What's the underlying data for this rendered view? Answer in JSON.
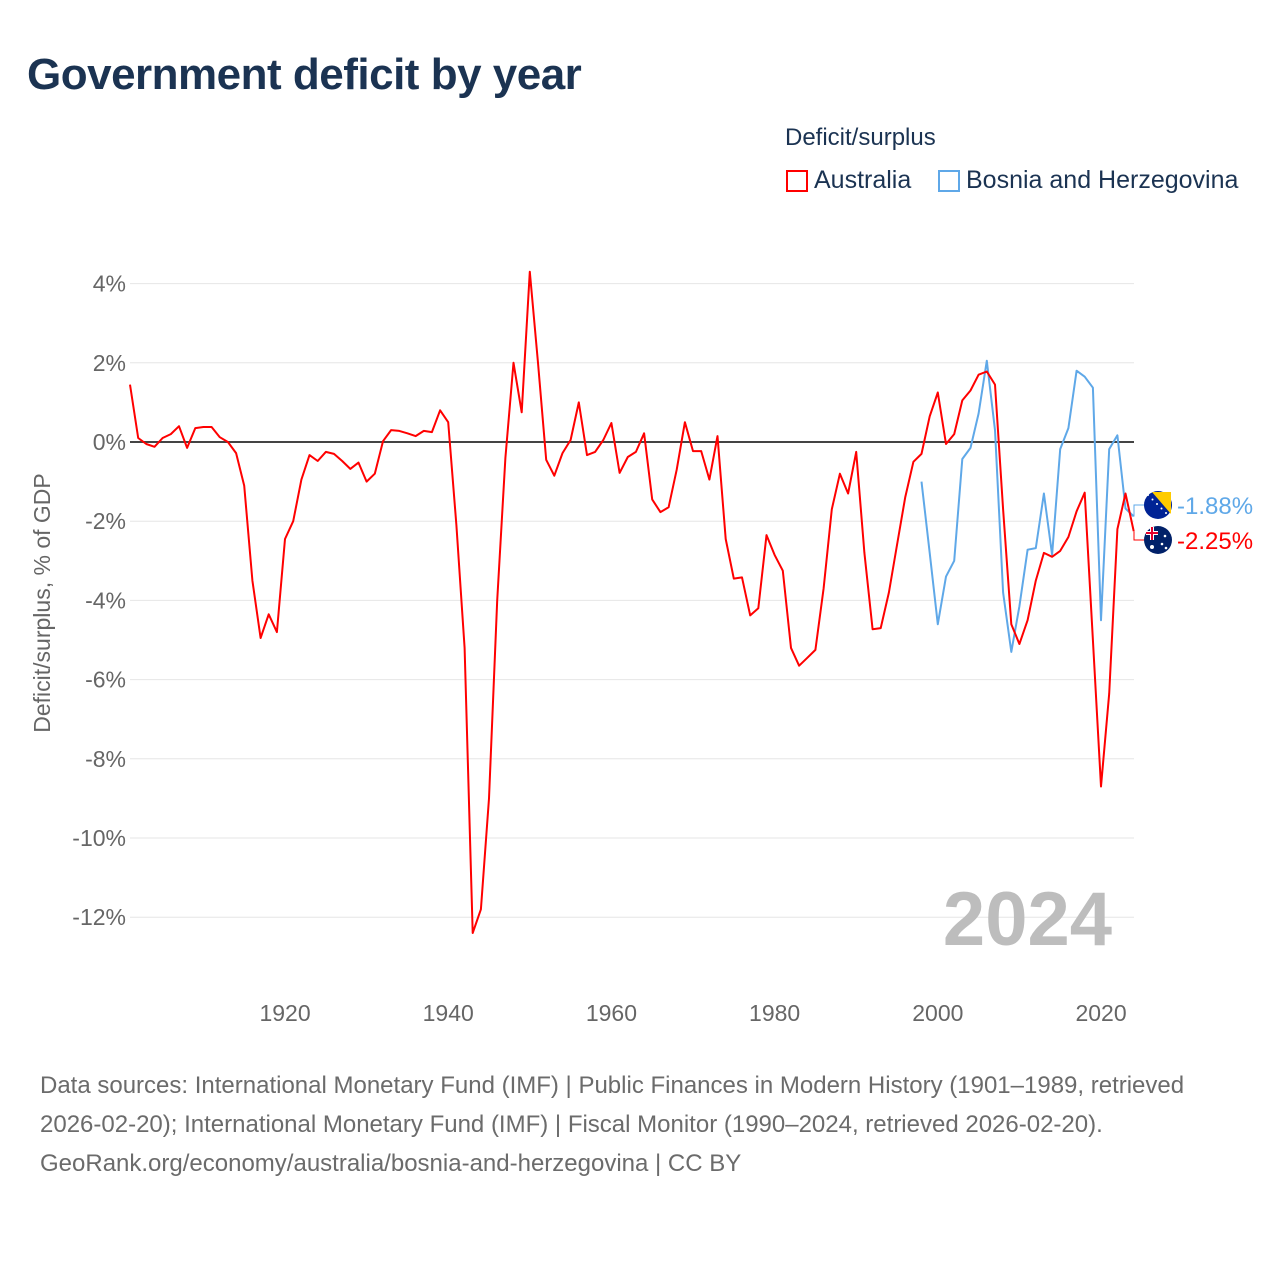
{
  "title": "Government deficit by year",
  "legend": {
    "title": "Deficit/surplus",
    "items": [
      {
        "label": "Australia",
        "color": "#ff0000"
      },
      {
        "label": "Bosnia and Herzegovina",
        "color": "#5fa8e8"
      }
    ]
  },
  "year_watermark": "2024",
  "footer": {
    "sources": "Data sources: International Monetary Fund (IMF) | Public Finances in Modern History (1901–1989, retrieved 2026-02-20); International Monetary Fund (IMF) | Fiscal Monitor (1990–2024, retrieved 2026-02-20).",
    "credit": "GeoRank.org/economy/australia/bosnia-and-herzegovina | CC BY"
  },
  "chart_data": {
    "type": "line",
    "title": "Government deficit by year",
    "xlabel": "",
    "ylabel": "Deficit/surplus, % of GDP",
    "xlim": [
      1901,
      2024
    ],
    "ylim": [
      -12.5,
      4.3
    ],
    "x_ticks": [
      {
        "value": 1920,
        "label": "1920"
      },
      {
        "value": 1940,
        "label": "1940"
      },
      {
        "value": 1960,
        "label": "1960"
      },
      {
        "value": 1980,
        "label": "1980"
      },
      {
        "value": 2000,
        "label": "2000"
      },
      {
        "value": 2020,
        "label": "2020"
      }
    ],
    "y_ticks": [
      {
        "value": 4,
        "label": "4%"
      },
      {
        "value": 2,
        "label": "2%"
      },
      {
        "value": 0,
        "label": "0%"
      },
      {
        "value": -2,
        "label": "-2%"
      },
      {
        "value": -4,
        "label": "-4%"
      },
      {
        "value": -6,
        "label": "-6%"
      },
      {
        "value": -8,
        "label": "-8%"
      },
      {
        "value": -10,
        "label": "-10%"
      },
      {
        "value": -12,
        "label": "-12%"
      }
    ],
    "grid": true,
    "legend_position": "top-right",
    "series": [
      {
        "name": "Australia",
        "color": "#ff0000",
        "start_year": 1901,
        "end_label": "-2.25%",
        "values": [
          1.45,
          0.1,
          -0.05,
          -0.12,
          0.1,
          0.2,
          0.4,
          -0.15,
          0.35,
          0.38,
          0.38,
          0.12,
          0,
          -0.28,
          -1.1,
          -3.5,
          -4.95,
          -4.35,
          -4.8,
          -2.45,
          -2.0,
          -0.95,
          -0.33,
          -0.48,
          -0.25,
          -0.3,
          -0.48,
          -0.68,
          -0.52,
          -1.0,
          -0.8,
          0.02,
          0.3,
          0.28,
          0.22,
          0.15,
          0.28,
          0.25,
          0.8,
          0.5,
          -2.1,
          -5.2,
          -12.4,
          -11.8,
          -9.0,
          -4.0,
          -0.4,
          2.0,
          0.75,
          4.3,
          2.0,
          -0.45,
          -0.85,
          -0.28,
          0.05,
          1.0,
          -0.33,
          -0.25,
          0.05,
          0.48,
          -0.78,
          -0.38,
          -0.25,
          0.22,
          -1.45,
          -1.77,
          -1.65,
          -0.7,
          0.5,
          -0.23,
          -0.23,
          -0.95,
          0.15,
          -2.45,
          -3.45,
          -3.42,
          -4.38,
          -4.2,
          -2.35,
          -2.85,
          -3.25,
          -5.2,
          -5.65,
          -5.45,
          -5.25,
          -3.7,
          -1.7,
          -0.8,
          -1.3,
          -0.25,
          -2.8,
          -4.73,
          -4.7,
          -3.8,
          -2.6,
          -1.4,
          -0.5,
          -0.3,
          0.65,
          1.25,
          -0.05,
          0.2,
          1.05,
          1.3,
          1.7,
          1.78,
          1.45,
          -1.7,
          -4.6,
          -5.1,
          -4.5,
          -3.5,
          -2.8,
          -2.9,
          -2.75,
          -2.4,
          -1.75,
          -1.28,
          -5.0,
          -8.7,
          -6.35,
          -2.2,
          -1.3,
          -2.25
        ]
      },
      {
        "name": "Bosnia and Herzegovina",
        "color": "#5fa8e8",
        "start_year": 1998,
        "end_label": "-1.88%",
        "values": [
          -1.0,
          -2.8,
          -4.6,
          -3.4,
          -3.0,
          -0.43,
          -0.15,
          0.72,
          2.05,
          0.3,
          -3.8,
          -5.3,
          -4.15,
          -2.72,
          -2.68,
          -1.3,
          -2.85,
          -0.18,
          0.35,
          1.8,
          1.65,
          1.37,
          -4.5,
          -0.18,
          0.17,
          -1.68,
          -1.88
        ]
      }
    ]
  }
}
